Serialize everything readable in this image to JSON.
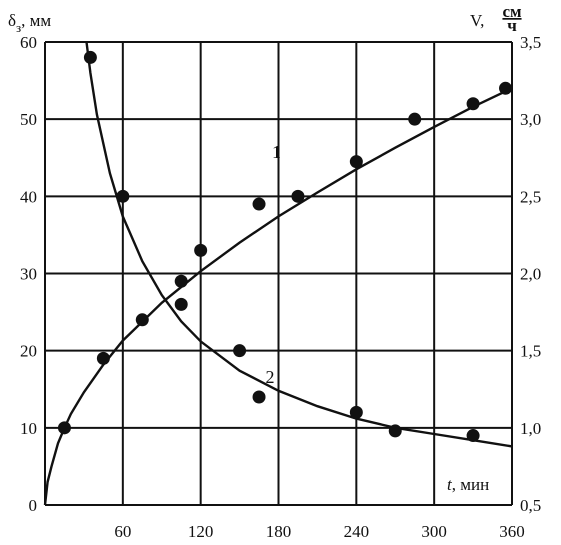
{
  "chart_data": {
    "type": "scatter",
    "title": "",
    "xlabel": {
      "var": "t",
      "unit": ", мин"
    },
    "ylabel_left": {
      "var": "δ",
      "sub": "з",
      "unit": ", мм"
    },
    "ylabel_right": {
      "var": "V, ",
      "num": "см",
      "den": "ч"
    },
    "xlim": [
      0,
      360
    ],
    "ylim_left": [
      0,
      60
    ],
    "ylim_right": [
      0.5,
      3.5
    ],
    "x_ticks": [
      60,
      120,
      180,
      240,
      300,
      360
    ],
    "y_left_ticks": [
      0,
      10,
      20,
      30,
      40,
      50,
      60
    ],
    "y_right_ticks": [
      "0,5",
      "1,0",
      "1,5",
      "2,0",
      "2,5",
      "3,0",
      "3,5"
    ],
    "grid": true,
    "series": [
      {
        "name": "1",
        "axis": "left",
        "points": [
          [
            15,
            10
          ],
          [
            45,
            19
          ],
          [
            75,
            24
          ],
          [
            105,
            29
          ],
          [
            120,
            33
          ],
          [
            165,
            39
          ],
          [
            195,
            40
          ],
          [
            240,
            44.5
          ],
          [
            285,
            50
          ],
          [
            330,
            52
          ],
          [
            355,
            54
          ]
        ],
        "curve": [
          [
            0,
            0
          ],
          [
            2,
            3
          ],
          [
            5,
            5
          ],
          [
            10,
            8
          ],
          [
            15,
            10
          ],
          [
            20,
            11.8
          ],
          [
            30,
            14.6
          ],
          [
            45,
            18.2
          ],
          [
            60,
            21.3
          ],
          [
            90,
            26.2
          ],
          [
            120,
            30.3
          ],
          [
            150,
            34
          ],
          [
            180,
            37.4
          ],
          [
            210,
            40.5
          ],
          [
            240,
            43.5
          ],
          [
            270,
            46.3
          ],
          [
            300,
            49
          ],
          [
            330,
            51.6
          ],
          [
            360,
            54
          ]
        ]
      },
      {
        "name": "2",
        "axis": "right",
        "points": [
          [
            35,
            3.4
          ],
          [
            60,
            2.5
          ],
          [
            105,
            1.8
          ],
          [
            150,
            1.5
          ],
          [
            165,
            1.2
          ],
          [
            240,
            1.1
          ],
          [
            270,
            0.98
          ],
          [
            330,
            0.95
          ]
        ],
        "curve": [
          [
            32,
            3.5
          ],
          [
            35,
            3.3
          ],
          [
            40,
            3.03
          ],
          [
            50,
            2.65
          ],
          [
            60,
            2.37
          ],
          [
            75,
            2.08
          ],
          [
            90,
            1.86
          ],
          [
            105,
            1.69
          ],
          [
            120,
            1.56
          ],
          [
            150,
            1.37
          ],
          [
            180,
            1.24
          ],
          [
            210,
            1.14
          ],
          [
            240,
            1.06
          ],
          [
            270,
            1.0
          ],
          [
            300,
            0.96
          ],
          [
            330,
            0.92
          ],
          [
            360,
            0.88
          ]
        ]
      }
    ]
  }
}
